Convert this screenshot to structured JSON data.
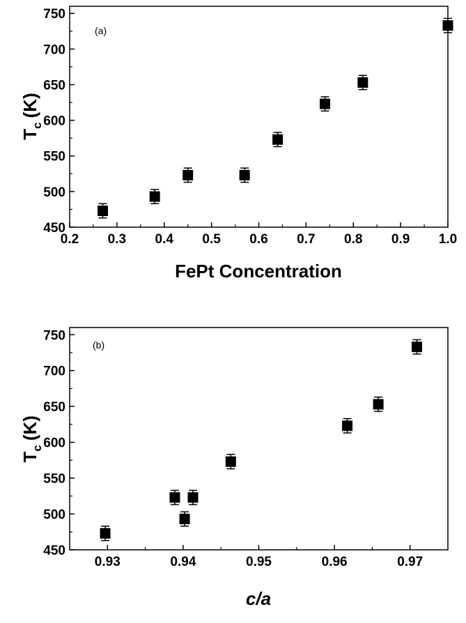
{
  "chart_data": [
    {
      "type": "scatter",
      "panel_label": "(a)",
      "xlabel": "FePt Concentration",
      "ylabel_main": "T",
      "ylabel_sub": "c",
      "ylabel_unit": "(K)",
      "xlim": [
        0.2,
        1.0
      ],
      "ylim": [
        450,
        760
      ],
      "xticks": [
        0.2,
        0.3,
        0.4,
        0.5,
        0.6,
        0.7,
        0.8,
        0.9,
        1.0
      ],
      "xtick_labels": [
        "0.2",
        "0.3",
        "0.4",
        "0.5",
        "0.6",
        "0.7",
        "0.8",
        "0.9",
        "1.0"
      ],
      "yticks": [
        450,
        500,
        550,
        600,
        650,
        700,
        750
      ],
      "ytick_labels": [
        "450",
        "500",
        "550",
        "600",
        "650",
        "700",
        "750"
      ],
      "grid": false,
      "marker": "filled-square",
      "color": "#000000",
      "error": 10,
      "x": [
        0.27,
        0.38,
        0.45,
        0.57,
        0.64,
        0.74,
        0.82,
        1.0
      ],
      "y": [
        473,
        493,
        523,
        523,
        573,
        623,
        653,
        733
      ]
    },
    {
      "type": "scatter",
      "panel_label": "(b)",
      "xlabel": "c/a",
      "ylabel_main": "T",
      "ylabel_sub": "c",
      "ylabel_unit": "(K)",
      "xlim": [
        0.925,
        0.975
      ],
      "ylim": [
        450,
        760
      ],
      "xticks": [
        0.93,
        0.94,
        0.95,
        0.96,
        0.97
      ],
      "xtick_labels": [
        "0.93",
        "0.94",
        "0.95",
        "0.96",
        "0.97"
      ],
      "yticks": [
        450,
        500,
        550,
        600,
        650,
        700,
        750
      ],
      "ytick_labels": [
        "450",
        "500",
        "550",
        "600",
        "650",
        "700",
        "750"
      ],
      "grid": false,
      "marker": "filled-square",
      "color": "#000000",
      "error": 10,
      "x": [
        0.9297,
        0.9389,
        0.9402,
        0.9413,
        0.9463,
        0.9617,
        0.9658,
        0.9709
      ],
      "y": [
        473,
        523,
        493,
        523,
        573,
        623,
        653,
        733
      ]
    }
  ]
}
